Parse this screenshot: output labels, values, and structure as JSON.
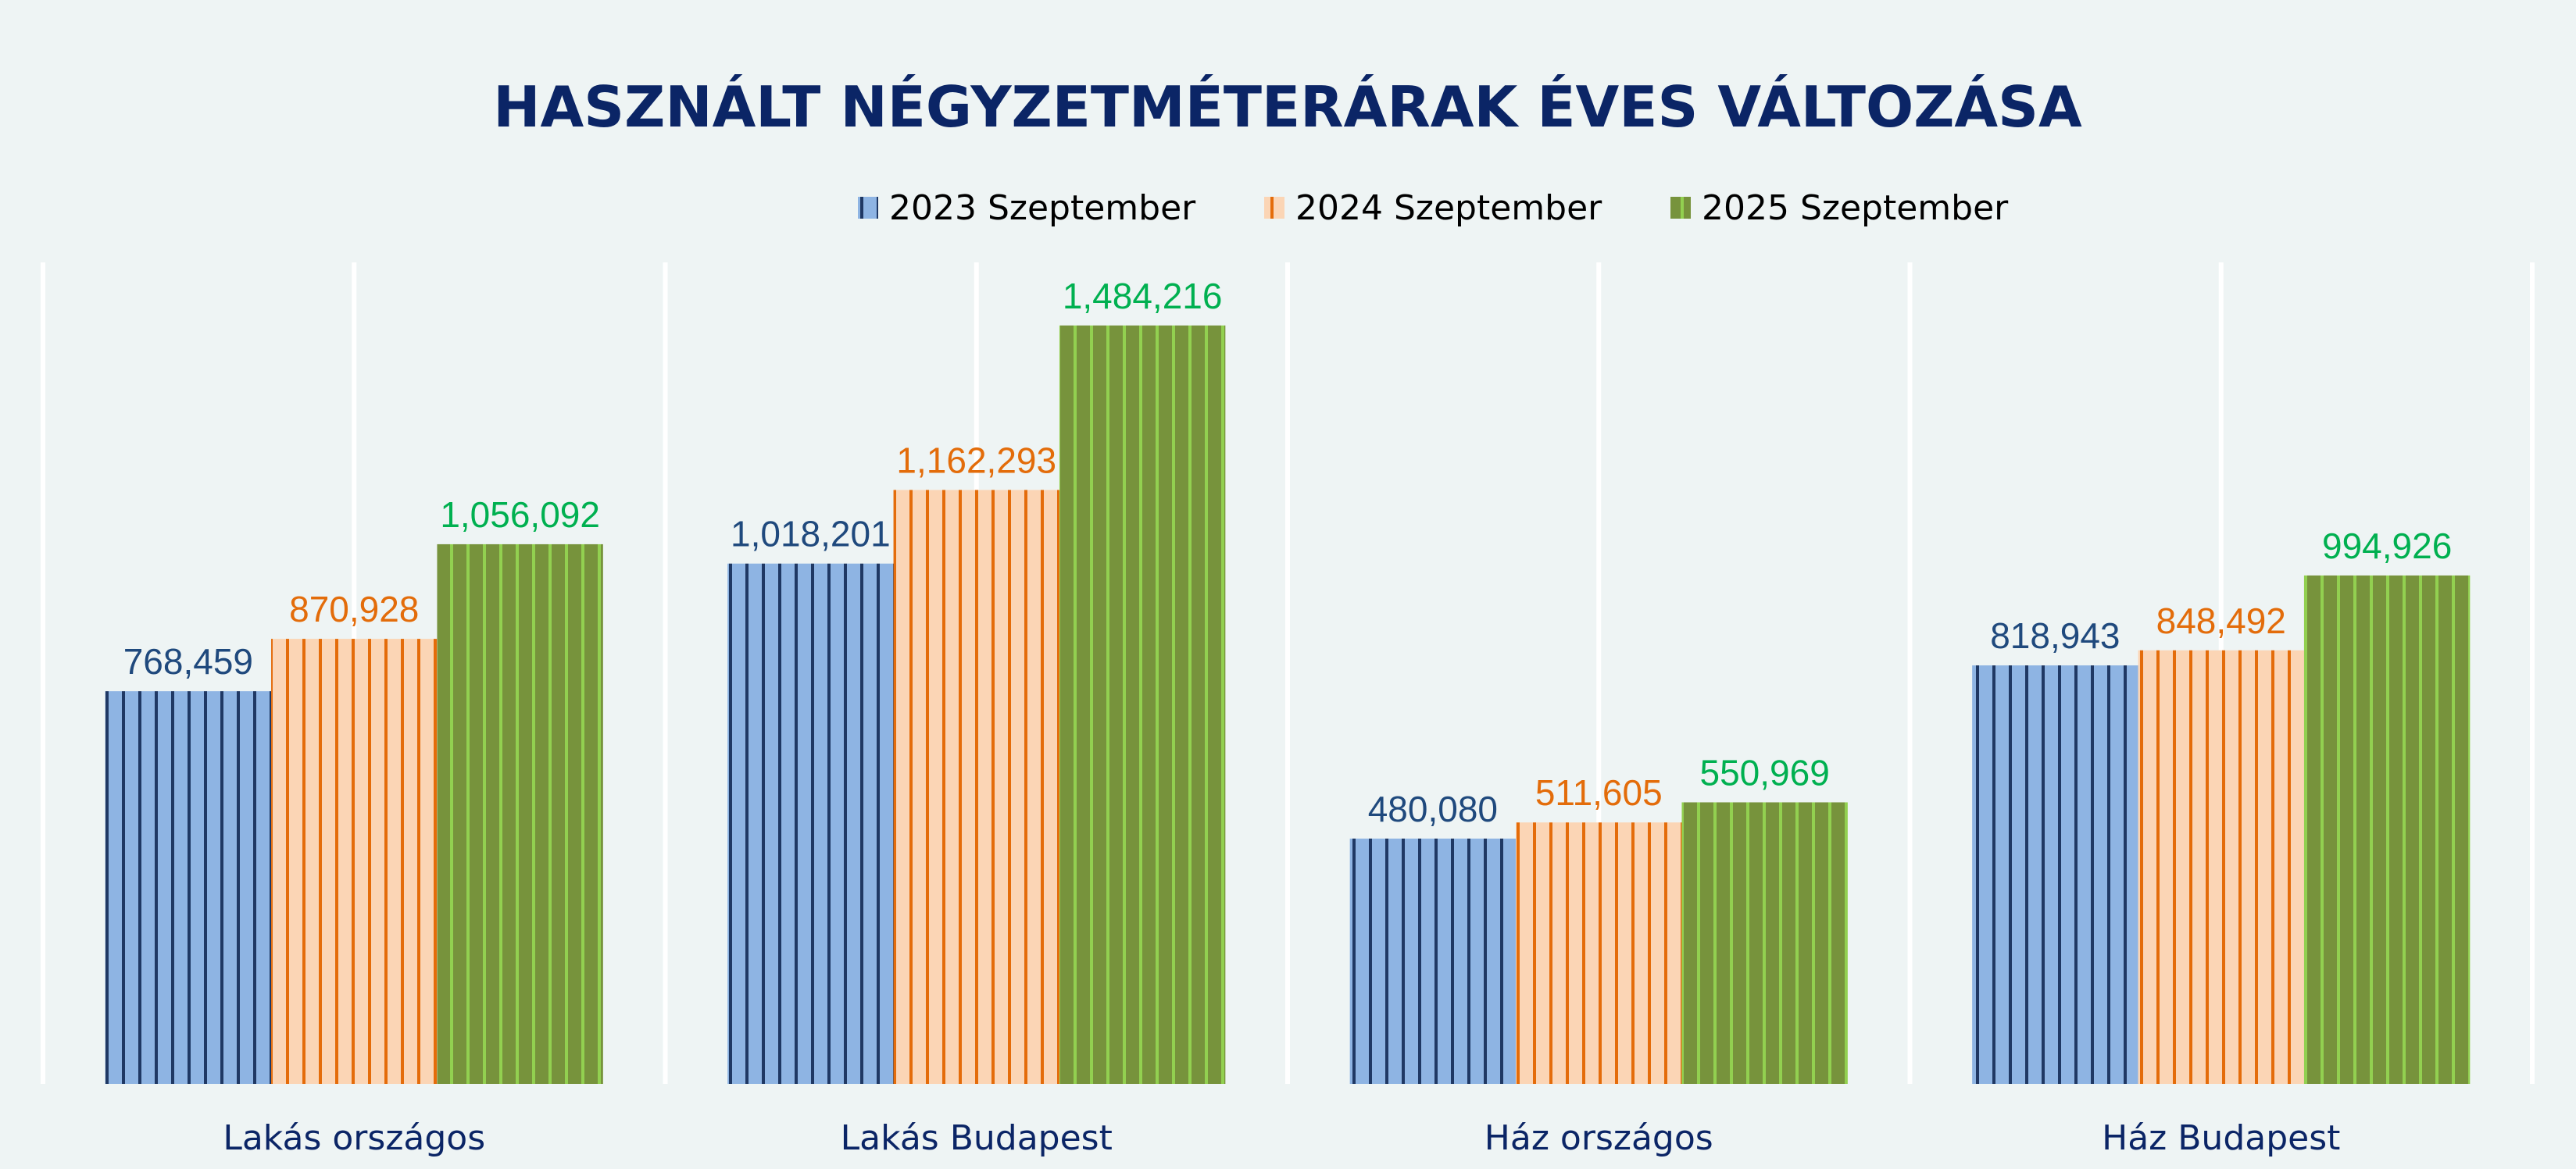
{
  "chart_data": {
    "type": "bar",
    "title": "HASZNÁLT NÉGYZETMÉTERÁRAK ÉVES VÁLTOZÁSA",
    "xlabel": "",
    "ylabel": "",
    "ylim": [
      0,
      1600000
    ],
    "grid": "vertical",
    "legend_position": "top",
    "categories": [
      "Lakás országos",
      "Lakás Budapest",
      "Ház országos",
      "Ház Budapest"
    ],
    "series": [
      {
        "name": "2023 Szeptember",
        "values": [
          768459,
          1018201,
          480080,
          818943
        ],
        "labels": [
          "768,459",
          "1,018,201",
          "480,080",
          "818,943"
        ],
        "fill": "#8eb4e3",
        "stripe": "#1f3864",
        "label_color": "#1f497d"
      },
      {
        "name": "2024 Szeptember",
        "values": [
          870928,
          1162293,
          511605,
          848492
        ],
        "labels": [
          "870,928",
          "1,162,293",
          "511,605",
          "848,492"
        ],
        "fill": "#fbd5b5",
        "stripe": "#e46c0a",
        "label_color": "#e36c0a"
      },
      {
        "name": "2025 Szeptember",
        "values": [
          1056092,
          1484216,
          550969,
          994926
        ],
        "labels": [
          "1,056,092",
          "1,484,216",
          "550,969",
          "994,926"
        ],
        "fill": "#77933c",
        "stripe": "#92d050",
        "label_color": "#00b050"
      }
    ]
  }
}
